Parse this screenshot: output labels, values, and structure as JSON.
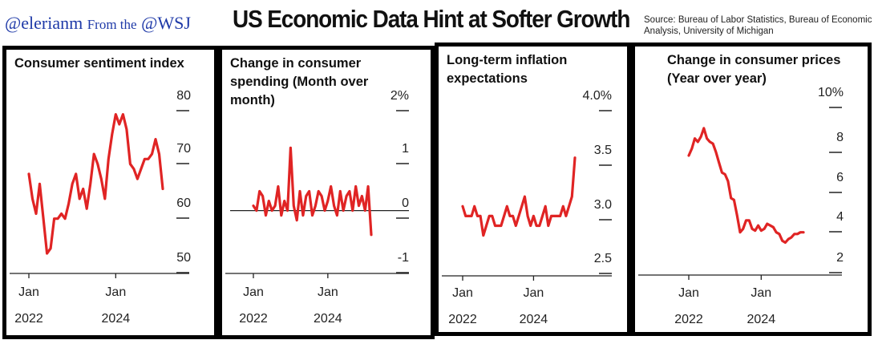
{
  "header": {
    "handle": "@elerianm",
    "from": "From the",
    "outlet": "@WSJ",
    "headline": "US Economic Data Hint at Softer Growth",
    "source": "Source: Bureau of Labor Statistics, Bureau of Economic Analysis, University of Michigan"
  },
  "colors": {
    "line": "#e02424",
    "frame": "#000000",
    "axis": "#222222"
  },
  "chart_data": [
    {
      "type": "line",
      "title": "Consumer sentiment index",
      "x_ticks": [
        {
          "top": "Jan",
          "bottom": "2022",
          "t": 0
        },
        {
          "top": "Jan",
          "bottom": "2024",
          "t": 24
        }
      ],
      "y_ticks": [
        "80",
        "70",
        "60",
        "50"
      ],
      "ylim": [
        46,
        82
      ],
      "series": [
        {
          "t": [
            0,
            1,
            2,
            3,
            4,
            5,
            6,
            7,
            8,
            9,
            10,
            11,
            12,
            13,
            14,
            15,
            16,
            17,
            18,
            19,
            20,
            21,
            22,
            23,
            24,
            25,
            26,
            27,
            28,
            29,
            30,
            31,
            32,
            33,
            34,
            35,
            36,
            37
          ],
          "values": [
            67,
            62,
            59,
            65,
            58,
            51,
            52,
            58,
            58,
            59,
            58,
            61,
            65,
            67,
            62,
            64,
            60,
            65,
            71,
            69,
            66,
            62,
            70,
            75,
            79,
            77,
            79,
            76,
            69,
            68,
            66,
            68,
            70,
            70,
            71,
            74,
            71,
            64
          ]
        }
      ]
    },
    {
      "type": "line",
      "title": "Change in consumer spending (Month over month)",
      "x_ticks": [
        {
          "top": "Jan",
          "bottom": "2022",
          "t": 0
        },
        {
          "top": "Jan",
          "bottom": "2024",
          "t": 24
        }
      ],
      "y_ticks": [
        "2%",
        "1",
        "0",
        "-1"
      ],
      "ylim": [
        -1.4,
        2.3
      ],
      "zero_line": 0,
      "series": [
        {
          "t": [
            0,
            1,
            2,
            3,
            4,
            5,
            6,
            7,
            8,
            9,
            10,
            11,
            12,
            13,
            14,
            15,
            16,
            17,
            18,
            19,
            20,
            21,
            22,
            23,
            24,
            25,
            26,
            27,
            28,
            29,
            30,
            31,
            32,
            33,
            34,
            35,
            36,
            37,
            38
          ],
          "values": [
            0.1,
            0.0,
            0.4,
            0.3,
            -0.1,
            0.2,
            0.0,
            0.1,
            0.5,
            -0.1,
            0.2,
            0.0,
            1.3,
            0.1,
            -0.2,
            0.4,
            -0.1,
            0.3,
            0.4,
            -0.1,
            0.1,
            0.4,
            0.3,
            0.0,
            0.2,
            0.5,
            0.1,
            -0.1,
            0.4,
            0.0,
            0.3,
            0.4,
            0.0,
            0.5,
            0.1,
            0.3,
            0.0,
            0.5,
            -0.5
          ]
        }
      ]
    },
    {
      "type": "line",
      "title": "Long-term inflation expectations",
      "x_ticks": [
        {
          "top": "Jan",
          "bottom": "2022",
          "t": 0
        },
        {
          "top": "Jan",
          "bottom": "2024",
          "t": 24
        }
      ],
      "y_ticks": [
        "4.0%",
        "3.5",
        "3.0",
        "2.5"
      ],
      "ylim": [
        2.4,
        4.1
      ],
      "series": [
        {
          "t": [
            0,
            1,
            2,
            3,
            4,
            5,
            6,
            7,
            8,
            9,
            10,
            11,
            12,
            13,
            14,
            15,
            16,
            17,
            18,
            19,
            20,
            21,
            22,
            23,
            24,
            25,
            26,
            27,
            28,
            29,
            30,
            31,
            32,
            33,
            34,
            35,
            36,
            37,
            38
          ],
          "values": [
            3.0,
            2.9,
            2.9,
            2.9,
            3.0,
            2.9,
            2.9,
            2.7,
            2.8,
            2.9,
            2.9,
            2.8,
            2.8,
            2.8,
            2.9,
            3.0,
            2.9,
            2.9,
            2.8,
            2.9,
            3.0,
            3.1,
            2.9,
            2.8,
            2.9,
            2.8,
            2.8,
            2.9,
            3.0,
            2.8,
            2.9,
            2.9,
            2.9,
            2.9,
            3.0,
            2.9,
            3.0,
            3.1,
            3.5
          ]
        }
      ]
    },
    {
      "type": "line",
      "title": "Change in consumer prices (Year over year)",
      "x_ticks": [
        {
          "top": "Jan",
          "bottom": "2022",
          "t": 0
        },
        {
          "top": "Jan",
          "bottom": "2024",
          "t": 24
        }
      ],
      "y_ticks": [
        "10%",
        "8",
        "6",
        "4",
        "2"
      ],
      "ylim": [
        1.2,
        10.6
      ],
      "series": [
        {
          "t": [
            0,
            1,
            2,
            3,
            4,
            5,
            6,
            7,
            8,
            9,
            10,
            11,
            12,
            13,
            14,
            15,
            16,
            17,
            18,
            19,
            20,
            21,
            22,
            23,
            24,
            25,
            26,
            27,
            28,
            29,
            30,
            31,
            32,
            33,
            34,
            35,
            36,
            37,
            38
          ],
          "values": [
            7.5,
            7.9,
            8.5,
            8.3,
            8.6,
            9.1,
            8.5,
            8.3,
            8.2,
            7.7,
            7.1,
            6.5,
            6.4,
            6.0,
            5.0,
            4.9,
            4.0,
            3.0,
            3.2,
            3.7,
            3.7,
            3.2,
            3.1,
            3.4,
            3.1,
            3.2,
            3.5,
            3.4,
            3.3,
            3.0,
            2.9,
            2.5,
            2.4,
            2.6,
            2.7,
            2.9,
            2.9,
            3.0,
            3.0
          ]
        }
      ]
    }
  ]
}
